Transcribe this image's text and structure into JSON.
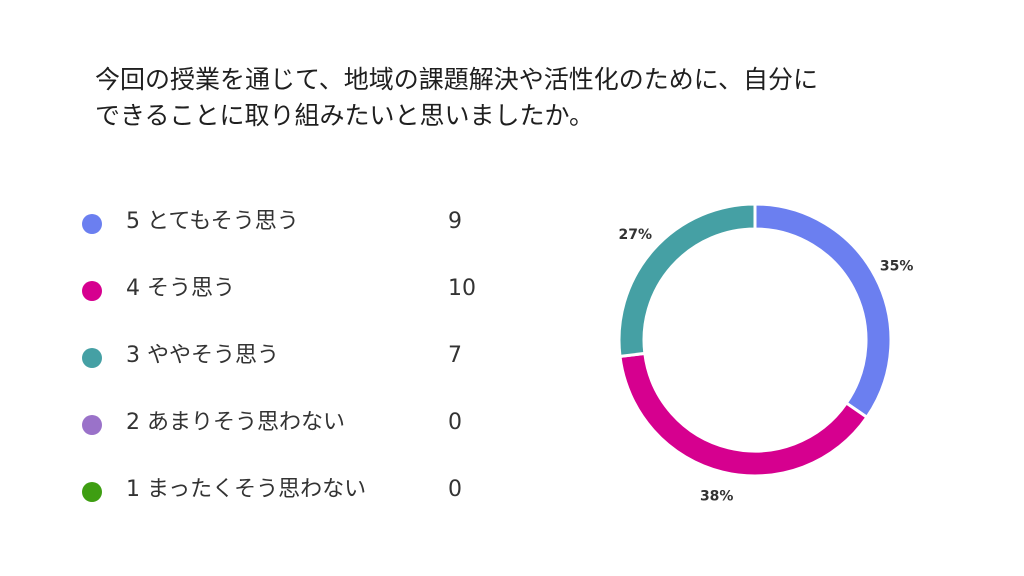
{
  "question": {
    "line1": "今回の授業を通じて、地域の課題解決や活性化のために、自分に",
    "line2": "できることに取り組みたいと思いましたか。"
  },
  "chart_data": {
    "type": "pie",
    "categories": [
      "5 とてもそう思う",
      "4 そう思う",
      "3 ややそう思う",
      "2 あまりそう思わない",
      "1 まったくそう思わない"
    ],
    "values": [
      9,
      10,
      7,
      0,
      0
    ],
    "colors": [
      "#6b7ff0",
      "#d6008f",
      "#45a0a4",
      "#9a72c9",
      "#3e9e12"
    ],
    "percent_labels": [
      "35%",
      "38%",
      "27%"
    ],
    "donut": true
  }
}
